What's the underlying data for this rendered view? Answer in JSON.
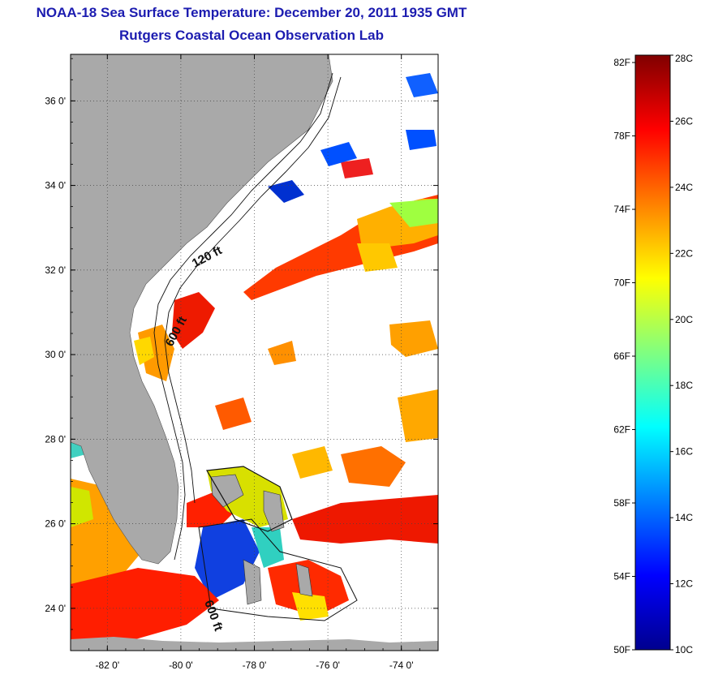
{
  "header": {
    "title": "NOAA-18 Sea Surface Temperature:  December 20, 2011 1935 GMT",
    "subtitle": "Rutgers Coastal Ocean Observation Lab"
  },
  "map": {
    "lat_ticks": [
      {
        "value": 36,
        "label": "36 0'"
      },
      {
        "value": 34,
        "label": "34 0'"
      },
      {
        "value": 32,
        "label": "32 0'"
      },
      {
        "value": 30,
        "label": "30 0'"
      },
      {
        "value": 28,
        "label": "28 0'"
      },
      {
        "value": 26,
        "label": "26 0'"
      },
      {
        "value": 24,
        "label": "24 0'"
      }
    ],
    "lon_ticks": [
      {
        "value": -82,
        "label": "-82 0'"
      },
      {
        "value": -80,
        "label": "-80 0'"
      },
      {
        "value": -78,
        "label": "-78 0'"
      },
      {
        "value": -76,
        "label": "-76 0'"
      },
      {
        "value": -74,
        "label": "-74 0'"
      }
    ],
    "lat_range": [
      23,
      37.1
    ],
    "lon_range": [
      -83,
      -73
    ],
    "contour_labels": [
      "120 ft",
      "600 ft",
      "600 ft"
    ],
    "land_color": "#a9a9a9",
    "ocean_color": "#ffffff"
  },
  "colorbar": {
    "fahrenheit_labels": [
      "82F",
      "78F",
      "74F",
      "70F",
      "66F",
      "62F",
      "58F",
      "54F",
      "50F"
    ],
    "celsius_labels": [
      "28C",
      "26C",
      "24C",
      "22C",
      "20C",
      "18C",
      "16C",
      "14C",
      "12C",
      "10C"
    ],
    "range_c": [
      10,
      28
    ],
    "colors": [
      "#00008f",
      "#0000ff",
      "#0080ff",
      "#00ffff",
      "#80ff80",
      "#ffff00",
      "#ff8000",
      "#ff0000",
      "#800000"
    ]
  }
}
